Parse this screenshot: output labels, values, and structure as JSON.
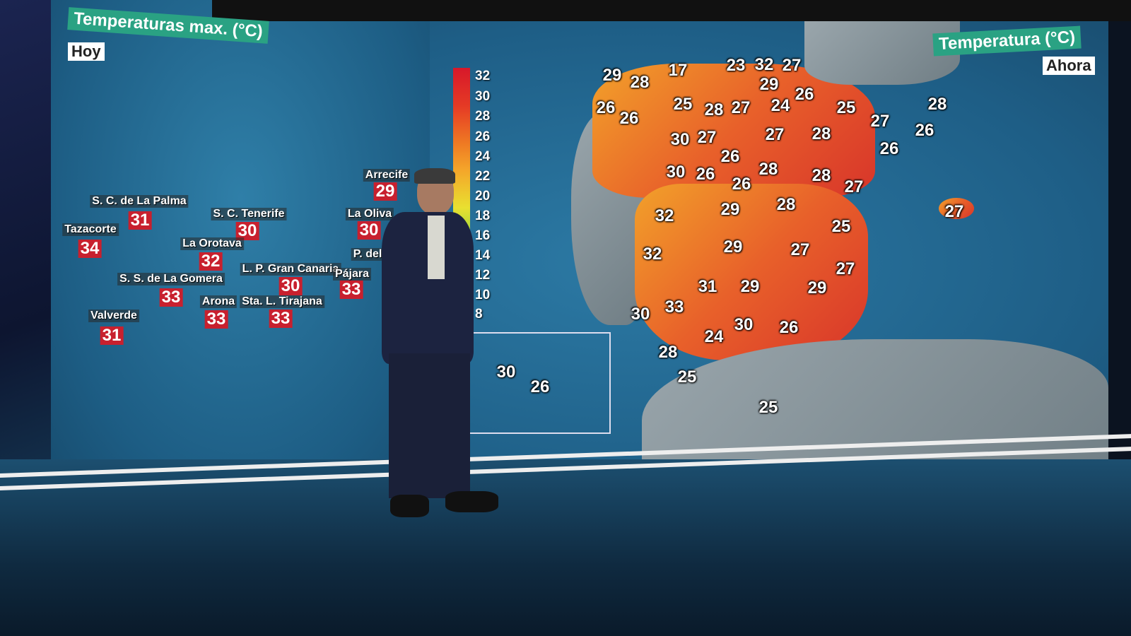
{
  "left_panel": {
    "title": "Temperaturas max. (°C)",
    "subtitle": "Hoy",
    "stations": [
      {
        "name": "S. C. de La Palma",
        "value": "31"
      },
      {
        "name": "Tazacorte",
        "value": "34"
      },
      {
        "name": "S. C. Tenerife",
        "value": "30"
      },
      {
        "name": "La Orotava",
        "value": "32"
      },
      {
        "name": "S. S. de La Gomera",
        "value": "33"
      },
      {
        "name": "Valverde",
        "value": "31"
      },
      {
        "name": "Arona",
        "value": "33"
      },
      {
        "name": "L. P. Gran Canaria",
        "value": "30"
      },
      {
        "name": "Sta. L. Tirajana",
        "value": "33"
      },
      {
        "name": "Arrecife",
        "value": "29"
      },
      {
        "name": "La Oliva",
        "value": "30"
      },
      {
        "name": "P. del",
        "value": ""
      },
      {
        "name": "Pájara",
        "value": "33"
      }
    ]
  },
  "right_panel": {
    "title": "Temperatura (°C)",
    "subtitle": "Ahora",
    "legend": [
      "32",
      "30",
      "28",
      "26",
      "24",
      "22",
      "20",
      "18",
      "16",
      "14",
      "12",
      "10",
      "8"
    ],
    "legend_colors": [
      "#d7182a",
      "#ef7b23",
      "#e9e030",
      "#3fbf45",
      "#2fc4b5"
    ],
    "values": [
      "29",
      "28",
      "17",
      "23",
      "32",
      "27",
      "29",
      "26",
      "26",
      "25",
      "28",
      "27",
      "24",
      "26",
      "25",
      "28",
      "27",
      "26",
      "30",
      "27",
      "27",
      "28",
      "26",
      "26",
      "28",
      "30",
      "26",
      "26",
      "28",
      "27",
      "29",
      "28",
      "27",
      "32",
      "25",
      "32",
      "29",
      "27",
      "27",
      "31",
      "29",
      "29",
      "33",
      "30",
      "30",
      "26",
      "24",
      "28",
      "25",
      "25"
    ],
    "inset_values": [
      "30",
      "26"
    ]
  }
}
